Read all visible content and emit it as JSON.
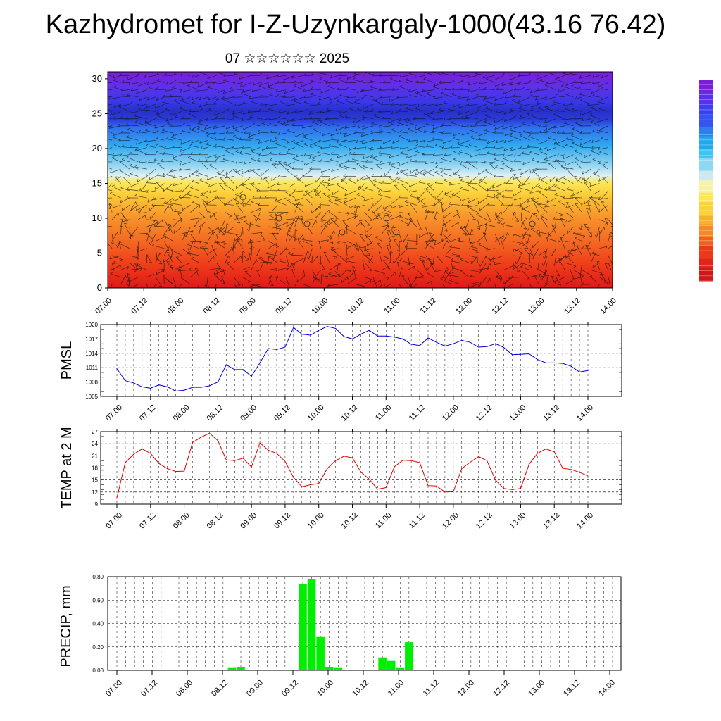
{
  "title": "Kazhydromet for I-Z-Uzynkargaly-1000(43.16 76.42)",
  "subtitle": "07 ☆☆☆☆☆☆ 2025",
  "colorbar": {
    "colors": [
      "#7a1fd6",
      "#5a2fee",
      "#3a3ff2",
      "#3555f0",
      "#2f7ef0",
      "#20a8f0",
      "#40c4f2",
      "#8fd8f2",
      "#cfe8f0",
      "#f6f2a8",
      "#fce84a",
      "#fcd23a",
      "#f8b02e",
      "#f48a26",
      "#f06020",
      "#ea3a1a",
      "#e0261a",
      "#d01818"
    ]
  },
  "chart_data": [
    {
      "type": "heatmap",
      "title": "",
      "xlabel": "",
      "ylabel": "",
      "x_tick_labels": [
        "07.00",
        "07.12",
        "08.00",
        "08.12",
        "09.00",
        "09.12",
        "10.00",
        "10.12",
        "11.00",
        "11.12",
        "12.00",
        "12.12",
        "13.00",
        "13.12",
        "14.00"
      ],
      "y_ticks": [
        0,
        5,
        10,
        15,
        20,
        25,
        30
      ],
      "ylim": [
        0,
        31
      ],
      "description_levels": "temperature by height",
      "vectors": "wind barbs"
    },
    {
      "type": "line",
      "ylabel": "PMSL",
      "x_tick_labels": [
        "07.00",
        "07.12",
        "08.00",
        "08.12",
        "09.00",
        "09.12",
        "10.00",
        "10.12",
        "11.00",
        "11.12",
        "12.00",
        "12.12",
        "13.00",
        "13.12",
        "14.00"
      ],
      "y_ticks": [
        1005,
        1008,
        1011,
        1014,
        1017,
        1020
      ],
      "ylim": [
        1005,
        1020
      ],
      "color": "#0000dd",
      "values": [
        1010.8,
        1008.3,
        1007.8,
        1007.0,
        1006.7,
        1007.4,
        1007.0,
        1006.1,
        1006.3,
        1006.9,
        1006.9,
        1007.2,
        1008.0,
        1011.6,
        1010.6,
        1010.6,
        1009.2,
        1012.0,
        1015.0,
        1014.8,
        1015.3,
        1019.4,
        1018.0,
        1017.8,
        1018.8,
        1019.6,
        1019.2,
        1017.5,
        1017.0,
        1018.0,
        1018.8,
        1017.6,
        1017.6,
        1017.4,
        1017.0,
        1015.9,
        1015.6,
        1017.2,
        1016.3,
        1015.5,
        1016.0,
        1016.7,
        1016.3,
        1015.3,
        1015.4,
        1016.0,
        1015.2,
        1013.7,
        1013.8,
        1013.9,
        1012.7,
        1012.0,
        1012.0,
        1011.9,
        1011.3,
        1010.1,
        1010.4
      ]
    },
    {
      "type": "line",
      "ylabel": "TEMP at 2 M",
      "x_tick_labels": [
        "07.00",
        "07.12",
        "08.00",
        "08.12",
        "09.00",
        "09.12",
        "10.00",
        "10.12",
        "11.00",
        "11.12",
        "12.00",
        "12.12",
        "13.00",
        "13.12",
        "14.00"
      ],
      "y_ticks": [
        9,
        12,
        15,
        18,
        21,
        24,
        27
      ],
      "ylim": [
        9,
        27
      ],
      "color": "#e00000",
      "values": [
        10.6,
        19.3,
        21.4,
        22.7,
        21.6,
        19.1,
        17.8,
        17.1,
        17.2,
        24.3,
        25.6,
        26.6,
        24.8,
        20.0,
        19.8,
        20.4,
        18.2,
        24.2,
        22.4,
        21.6,
        19.6,
        15.6,
        13.3,
        13.8,
        14.1,
        17.8,
        19.8,
        20.9,
        20.5,
        17.0,
        15.2,
        12.7,
        13.1,
        18.3,
        19.9,
        19.8,
        19.3,
        13.6,
        13.5,
        12.0,
        12.1,
        17.8,
        19.4,
        20.8,
        19.8,
        15.0,
        12.9,
        12.6,
        12.9,
        18.9,
        21.6,
        22.7,
        22.0,
        17.9,
        17.6,
        16.9,
        16.0
      ]
    },
    {
      "type": "bar",
      "ylabel": "PRECIP, mm",
      "x_tick_labels": [
        "07.00",
        "07.12",
        "08.00",
        "08.12",
        "09.00",
        "09.12",
        "10.00",
        "10.12",
        "11.00",
        "11.12",
        "12.00",
        "12.12",
        "13.00",
        "13.12",
        "14.00"
      ],
      "y_tick_labels": [
        "0.00",
        "0.20",
        "0.40",
        "0.60",
        "0.80"
      ],
      "ylim": [
        0,
        0.8
      ],
      "color": "#00ee00",
      "values": [
        0,
        0,
        0,
        0,
        0,
        0,
        0,
        0,
        0,
        0,
        0,
        0,
        0,
        0.02,
        0.03,
        0,
        0,
        0,
        0,
        0,
        0,
        0.74,
        0.78,
        0.29,
        0.03,
        0.02,
        0,
        0,
        0,
        0,
        0.11,
        0.08,
        0.02,
        0.24,
        0,
        0,
        0,
        0,
        0,
        0,
        0,
        0,
        0,
        0,
        0,
        0,
        0,
        0,
        0,
        0,
        0,
        0,
        0,
        0,
        0,
        0,
        0
      ]
    }
  ]
}
